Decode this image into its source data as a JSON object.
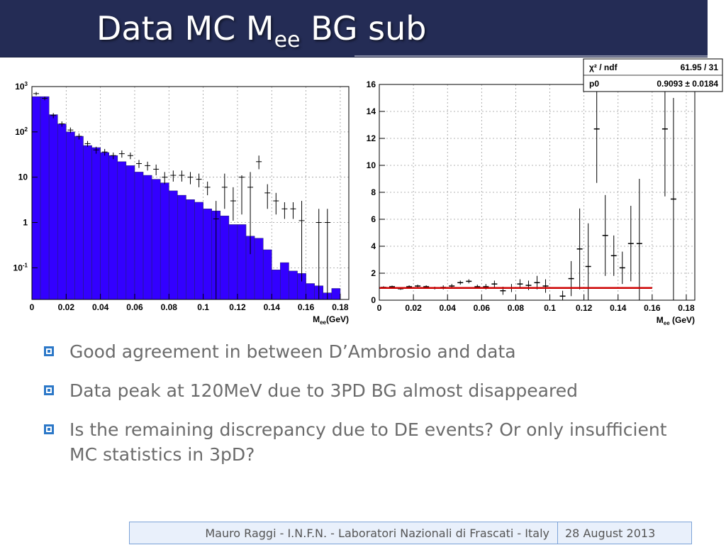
{
  "slide": {
    "title_main": "Data MC M",
    "title_sub": "ee",
    "title_tail": " BG sub"
  },
  "bullets": [
    "Good agreement in between D’Ambrosio and data",
    "Data peak at 120MeV due to 3PD BG almost disappeared",
    "Is the remaining discrepancy due to DE events? Or only insufficient MC statistics in 3pD?"
  ],
  "footer": {
    "author": "Mauro Raggi - I.N.F.N. - Laboratori Nazionali di Frascati - Italy",
    "date": "28 August 2013"
  },
  "colors": {
    "title_bar": "#242c55",
    "histogram_fill": "#3300ff",
    "fit_line": "#cc0000",
    "bullet": "#2c78c8"
  },
  "chart_data": [
    {
      "type": "bar",
      "scale": "log",
      "xlim": [
        0,
        0.185
      ],
      "ylim": [
        0.02,
        1000
      ],
      "xticks": [
        "0",
        "0.02",
        "0.04",
        "0.06",
        "0.08",
        "0.1",
        "0.12",
        "0.14",
        "0.16",
        "0.18"
      ],
      "xtick_values": [
        0,
        0.02,
        0.04,
        0.06,
        0.08,
        0.1,
        0.12,
        0.14,
        0.16,
        0.18
      ],
      "yticks": [
        {
          "base": "10",
          "exp": "-1",
          "value": 0.1
        },
        {
          "base": "1",
          "exp": "",
          "value": 1
        },
        {
          "base": "10",
          "exp": "",
          "value": 10
        },
        {
          "base": "10",
          "exp": "2",
          "value": 100
        },
        {
          "base": "10",
          "exp": "3",
          "value": 1000
        }
      ],
      "xlabel_main": "M",
      "xlabel_sub": "ee",
      "xlabel_tail": "(GeV)",
      "grid": true,
      "bin_width": 0.005,
      "mc_values": [
        600,
        600,
        240,
        150,
        100,
        80,
        50,
        45,
        35,
        30,
        22,
        18,
        13,
        11,
        9,
        7.5,
        5,
        4,
        3.2,
        2.8,
        2,
        1.8,
        1.4,
        0.9,
        0.9,
        0.5,
        0.45,
        0.25,
        0.09,
        0.13,
        0.085,
        0.075,
        0.045,
        0.04,
        0.028,
        0.035,
        0.02
      ],
      "data_points": [
        {
          "x": 0.0025,
          "y": 700,
          "lo": 640,
          "hi": 760
        },
        {
          "x": 0.0075,
          "y": 550,
          "lo": 500,
          "hi": 600
        },
        {
          "x": 0.0125,
          "y": 230,
          "lo": 200,
          "hi": 260
        },
        {
          "x": 0.0175,
          "y": 150,
          "lo": 130,
          "hi": 170
        },
        {
          "x": 0.0225,
          "y": 110,
          "lo": 95,
          "hi": 125
        },
        {
          "x": 0.0275,
          "y": 80,
          "lo": 68,
          "hi": 92
        },
        {
          "x": 0.0325,
          "y": 55,
          "lo": 47,
          "hi": 63
        },
        {
          "x": 0.0375,
          "y": 40,
          "lo": 33,
          "hi": 47
        },
        {
          "x": 0.0425,
          "y": 36,
          "lo": 30,
          "hi": 42
        },
        {
          "x": 0.0475,
          "y": 30,
          "lo": 25,
          "hi": 35
        },
        {
          "x": 0.0525,
          "y": 33,
          "lo": 27,
          "hi": 39
        },
        {
          "x": 0.0575,
          "y": 30,
          "lo": 25,
          "hi": 35
        },
        {
          "x": 0.0625,
          "y": 20,
          "lo": 16,
          "hi": 24
        },
        {
          "x": 0.0675,
          "y": 18,
          "lo": 14,
          "hi": 22
        },
        {
          "x": 0.0725,
          "y": 15,
          "lo": 11,
          "hi": 19
        },
        {
          "x": 0.0775,
          "y": 10,
          "lo": 7,
          "hi": 13
        },
        {
          "x": 0.0825,
          "y": 11,
          "lo": 8,
          "hi": 14
        },
        {
          "x": 0.0875,
          "y": 11,
          "lo": 8,
          "hi": 14
        },
        {
          "x": 0.0925,
          "y": 10,
          "lo": 7,
          "hi": 13
        },
        {
          "x": 0.0975,
          "y": 9,
          "lo": 6,
          "hi": 12
        },
        {
          "x": 0.1025,
          "y": 6,
          "lo": 4,
          "hi": 8
        },
        {
          "x": 0.1075,
          "y": 1.2,
          "lo": 0.02,
          "hi": 3
        },
        {
          "x": 0.1125,
          "y": 6,
          "lo": 2,
          "hi": 12
        },
        {
          "x": 0.1175,
          "y": 3,
          "lo": 1.1,
          "hi": 6
        },
        {
          "x": 0.1225,
          "y": 10,
          "lo": 1.5,
          "hi": 11
        },
        {
          "x": 0.1275,
          "y": 6,
          "lo": 0.2,
          "hi": 13
        },
        {
          "x": 0.1325,
          "y": 22,
          "lo": 15,
          "hi": 30
        },
        {
          "x": 0.1375,
          "y": 4.5,
          "lo": 2,
          "hi": 7
        },
        {
          "x": 0.1425,
          "y": 3,
          "lo": 1.5,
          "hi": 4.5
        },
        {
          "x": 0.1475,
          "y": 2,
          "lo": 1.2,
          "hi": 2.8
        },
        {
          "x": 0.1525,
          "y": 2,
          "lo": 1.2,
          "hi": 2.8
        },
        {
          "x": 0.1575,
          "y": 1.1,
          "lo": 0.05,
          "hi": 3
        },
        {
          "x": 0.1675,
          "y": 1,
          "lo": 0.02,
          "hi": 2
        },
        {
          "x": 0.1725,
          "y": 1,
          "lo": 0.02,
          "hi": 2
        }
      ]
    },
    {
      "type": "scatter",
      "xlim": [
        0,
        0.185
      ],
      "ylim": [
        0,
        16
      ],
      "xticks": [
        "0",
        "0.02",
        "0.04",
        "0.06",
        "0.08",
        "0.1",
        "0.12",
        "0.14",
        "0.16",
        "0.18"
      ],
      "xtick_values": [
        0,
        0.02,
        0.04,
        0.06,
        0.08,
        0.1,
        0.12,
        0.14,
        0.16,
        0.18
      ],
      "yticks": [
        "0",
        "2",
        "4",
        "6",
        "8",
        "10",
        "12",
        "14",
        "16"
      ],
      "ytick_values": [
        0,
        2,
        4,
        6,
        8,
        10,
        12,
        14,
        16
      ],
      "xlabel_main": "M",
      "xlabel_sub": "ee",
      "xlabel_tail": " (GeV)",
      "grid": true,
      "fit": {
        "y": 0.9093,
        "x_start": 0,
        "x_end": 0.16
      },
      "stats": {
        "row1_label": "χ² / ndf",
        "row1_value": "61.95 / 31",
        "row2_label": "p0",
        "row2_value": "0.9093 ± 0.0184",
        "position": "top-right"
      },
      "data_points": [
        {
          "x": 0.0025,
          "y": 0.95,
          "err": 0.08
        },
        {
          "x": 0.0075,
          "y": 1.0,
          "err": 0.08
        },
        {
          "x": 0.0125,
          "y": 0.85,
          "err": 0.08
        },
        {
          "x": 0.0175,
          "y": 1.0,
          "err": 0.1
        },
        {
          "x": 0.0225,
          "y": 1.05,
          "err": 0.1
        },
        {
          "x": 0.0275,
          "y": 1.0,
          "err": 0.1
        },
        {
          "x": 0.0325,
          "y": 0.9,
          "err": 0.1
        },
        {
          "x": 0.0375,
          "y": 0.95,
          "err": 0.15
        },
        {
          "x": 0.0425,
          "y": 1.05,
          "err": 0.15
        },
        {
          "x": 0.0475,
          "y": 1.3,
          "err": 0.15
        },
        {
          "x": 0.0525,
          "y": 1.4,
          "err": 0.15
        },
        {
          "x": 0.0575,
          "y": 1.0,
          "err": 0.15
        },
        {
          "x": 0.0625,
          "y": 1.0,
          "err": 0.2
        },
        {
          "x": 0.0675,
          "y": 1.2,
          "err": 0.25
        },
        {
          "x": 0.0725,
          "y": 0.7,
          "err": 0.3
        },
        {
          "x": 0.0775,
          "y": 0.9,
          "err": 0.3
        },
        {
          "x": 0.0825,
          "y": 1.2,
          "err": 0.35
        },
        {
          "x": 0.0875,
          "y": 1.1,
          "err": 0.35
        },
        {
          "x": 0.0925,
          "y": 1.3,
          "err": 0.5
        },
        {
          "x": 0.0975,
          "y": 1.05,
          "err": 0.5
        },
        {
          "x": 0.1075,
          "y": 0.3,
          "err": 0.4
        },
        {
          "x": 0.1125,
          "y": 1.6,
          "err": 1.3
        },
        {
          "x": 0.1175,
          "y": 3.8,
          "err": 3.0
        },
        {
          "x": 0.1225,
          "y": 2.5,
          "err": 3.2
        },
        {
          "x": 0.1275,
          "y": 12.7,
          "err": 4.0
        },
        {
          "x": 0.1325,
          "y": 4.8,
          "err": 3.0
        },
        {
          "x": 0.1375,
          "y": 3.3,
          "err": 1.5
        },
        {
          "x": 0.1425,
          "y": 2.4,
          "err": 1.2
        },
        {
          "x": 0.1475,
          "y": 4.2,
          "err": 2.8
        },
        {
          "x": 0.1525,
          "y": 4.2,
          "err": 4.8
        },
        {
          "x": 0.1675,
          "y": 12.7,
          "err": 5.0
        },
        {
          "x": 0.1725,
          "y": 7.5,
          "err": 7.5
        }
      ]
    }
  ]
}
